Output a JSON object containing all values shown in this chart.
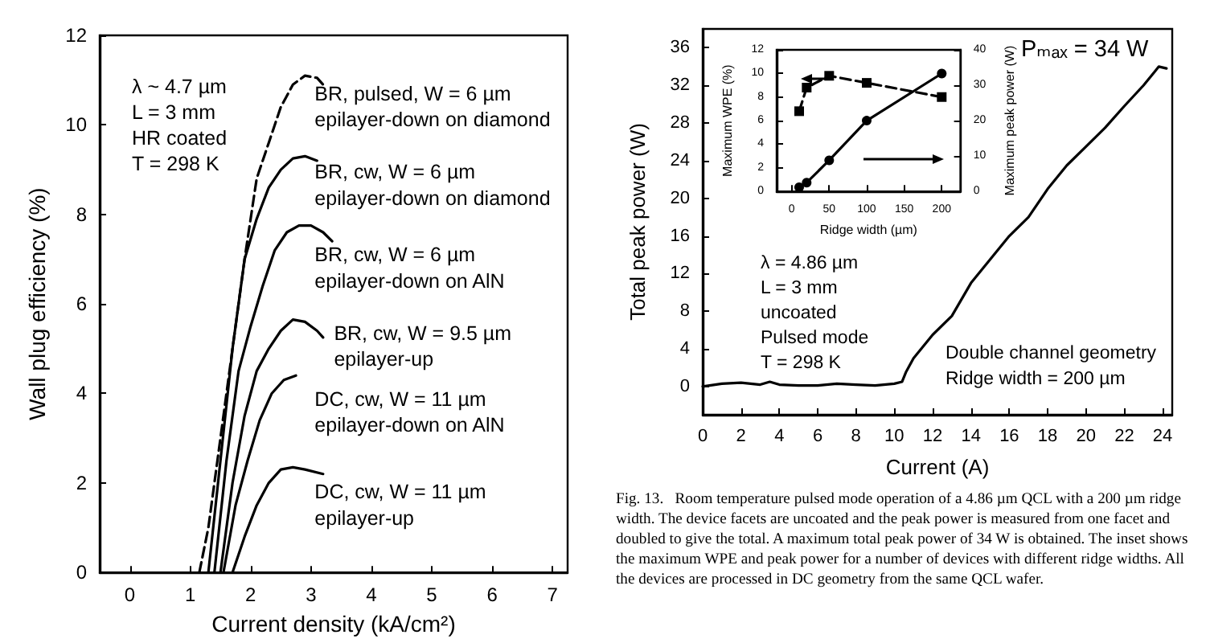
{
  "chart_data": [
    {
      "type": "line",
      "xlabel": "Current density (kA/cm²)",
      "ylabel": "Wall plug efficiency (%)",
      "annotations": [
        "λ ~ 4.7 µm\nL = 3 mm\nHR coated\nT = 298 K"
      ],
      "xlim": [
        -0.5,
        7.25
      ],
      "xticks": [
        0,
        1,
        2,
        3,
        4,
        5,
        6,
        7
      ],
      "ylim": [
        0,
        12
      ],
      "yticks": [
        0,
        2,
        4,
        6,
        8,
        10,
        12
      ],
      "marker": "none",
      "series": [
        {
          "name": "BR, pulsed, W = 6 µm\nepilayer-down on diamond",
          "color": "#000000",
          "line_style": "dashed",
          "x": [
            1.15,
            1.3,
            1.5,
            1.7,
            1.9,
            2.1,
            2.3,
            2.5,
            2.7,
            2.9,
            3.1,
            3.2
          ],
          "values": [
            0,
            1,
            3,
            5,
            7,
            8.8,
            9.6,
            10.4,
            10.9,
            11.1,
            11.05,
            10.9
          ]
        },
        {
          "name": "BR, cw, W = 6 µm\nepilayer-down on diamond",
          "color": "#000000",
          "line_style": "solid",
          "x": [
            1.3,
            1.5,
            1.7,
            1.9,
            2.1,
            2.3,
            2.5,
            2.7,
            2.9,
            3.1
          ],
          "values": [
            0,
            2.5,
            5,
            7,
            7.9,
            8.6,
            9,
            9.25,
            9.3,
            9.2
          ]
        },
        {
          "name": "BR, cw, W = 6 µm\nepilayer-down on AlN",
          "color": "#000000",
          "line_style": "solid",
          "x": [
            1.4,
            1.6,
            1.8,
            2,
            2.2,
            2.4,
            2.6,
            2.8,
            3,
            3.2,
            3.35
          ],
          "values": [
            0,
            2.5,
            4.5,
            5.5,
            6.4,
            7.2,
            7.6,
            7.75,
            7.75,
            7.6,
            7.4
          ]
        },
        {
          "name": "BR, cw, W = 9.5 µm\nepilayer-up",
          "color": "#000000",
          "line_style": "solid",
          "x": [
            1.5,
            1.7,
            1.9,
            2.1,
            2.3,
            2.5,
            2.7,
            2.9,
            3.1,
            3.2
          ],
          "values": [
            0,
            2,
            3.5,
            4.5,
            5,
            5.4,
            5.65,
            5.6,
            5.4,
            5.25
          ]
        },
        {
          "name": "DC, cw, W = 11 µm\nepilayer-down on AlN",
          "color": "#000000",
          "line_style": "solid",
          "x": [
            1.55,
            1.75,
            1.95,
            2.15,
            2.35,
            2.55,
            2.75
          ],
          "values": [
            0,
            1.5,
            2.5,
            3.4,
            4,
            4.3,
            4.4
          ]
        },
        {
          "name": "DC, cw, W = 11 µm\nepilayer-up",
          "color": "#000000",
          "line_style": "solid",
          "x": [
            1.7,
            1.9,
            2.1,
            2.3,
            2.5,
            2.7,
            2.9,
            3.2
          ],
          "values": [
            0,
            0.8,
            1.5,
            2,
            2.3,
            2.35,
            2.3,
            2.2
          ]
        }
      ]
    },
    {
      "type": "line",
      "xlabel": "Current (A)",
      "ylabel": "Total peak power (W)",
      "annotations": [
        "Pₘₐₓ = 34 W",
        "λ = 4.86 µm\nL = 3 mm\nuncoated\nPulsed mode\nT = 298 K",
        "Double channel geometry\nRidge width = 200 µm",
        "Fig. 13.   Room temperature pulsed mode operation of a 4.86 µm QCL with a 200 µm ridge width. The device facets are uncoated and the peak power is measured from one facet and doubled to give the total. A maximum total peak power of 34 W is obtained. The inset shows the maximum WPE and peak power for a number of devices with different ridge widths. All the devices are processed in DC geometry from the same QCL wafer."
      ],
      "xlim": [
        0,
        24.5
      ],
      "xticks": [
        0,
        2,
        4,
        6,
        8,
        10,
        12,
        14,
        16,
        18,
        20,
        22,
        24
      ],
      "ylim": [
        -3,
        38
      ],
      "yticks": [
        0,
        4,
        8,
        12,
        16,
        20,
        24,
        28,
        32,
        36
      ],
      "marker": "none",
      "series": [
        {
          "color": "#000000",
          "x": [
            0,
            1,
            2,
            3,
            3.5,
            4,
            5,
            6,
            7,
            8,
            9,
            10,
            10.4,
            10.6,
            11,
            12,
            13,
            14,
            15,
            16,
            17,
            18,
            19,
            20,
            21,
            22,
            23,
            23.6,
            23.8,
            24.2
          ],
          "values": [
            0,
            0.3,
            0.4,
            0.2,
            0.5,
            0.2,
            0.1,
            0.1,
            0.3,
            0.2,
            0.1,
            0.3,
            0.5,
            1.5,
            3,
            5.5,
            7.5,
            11,
            13.5,
            16,
            18,
            21,
            23.5,
            25.5,
            27.5,
            29.8,
            32,
            33.5,
            34,
            33.8
          ]
        }
      ]
    },
    {
      "type": "line",
      "xlabel": "Ridge width (µm)",
      "ylabel": "Maximum WPE (%)",
      "y2label": "Maximum peak power (W)",
      "xlim": [
        -20,
        225
      ],
      "xticks": [
        0,
        50,
        100,
        150,
        200
      ],
      "ylim": [
        0,
        12
      ],
      "yticks": [
        0,
        2,
        4,
        6,
        8,
        10,
        12
      ],
      "y2lim": [
        0,
        40
      ],
      "y2ticks": [
        0,
        10,
        20,
        30,
        40
      ],
      "series": [
        {
          "color": "#000000",
          "line_style": "dashed",
          "marker": "square",
          "x": [
            10,
            20,
            50,
            100,
            200
          ],
          "values": [
            6.8,
            8.8,
            9.8,
            9.2,
            8
          ]
        },
        {
          "color": "#000000",
          "line_style": "solid",
          "marker": "circle",
          "axis": "y2",
          "x": [
            10,
            20,
            50,
            100,
            200
          ],
          "values": [
            1.2,
            2.5,
            8.8,
            20,
            33.3
          ]
        }
      ]
    }
  ]
}
